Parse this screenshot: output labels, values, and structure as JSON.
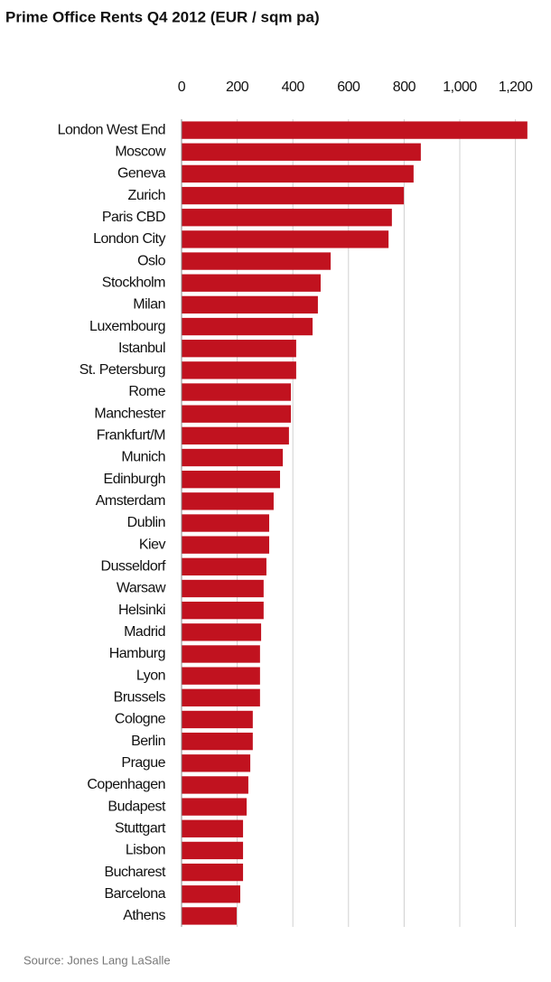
{
  "chart_data": {
    "type": "hbar",
    "title": "Prime Office Rents Q4 2012 (EUR / sqm pa)",
    "source": "Source: Jones Lang LaSalle",
    "categories": [
      "London West End",
      "Moscow",
      "Geneva",
      "Zurich",
      "Paris CBD",
      "London City",
      "Oslo",
      "Stockholm",
      "Milan",
      "Luxembourg",
      "Istanbul",
      "St. Petersburg",
      "Rome",
      "Manchester",
      "Frankfurt/M",
      "Munich",
      "Edinburgh",
      "Amsterdam",
      "Dublin",
      "Kiev",
      "Dusseldorf",
      "Warsaw",
      "Helsinki",
      "Madrid",
      "Hamburg",
      "Lyon",
      "Brussels",
      "Cologne",
      "Berlin",
      "Prague",
      "Copenhagen",
      "Budapest",
      "Stuttgart",
      "Lisbon",
      "Bucharest",
      "Barcelona",
      "Athens"
    ],
    "values": [
      1243,
      860,
      834,
      799,
      756,
      744,
      536,
      500,
      490,
      471,
      412,
      412,
      393,
      393,
      386,
      364,
      354,
      331,
      315,
      315,
      305,
      295,
      295,
      286,
      282,
      282,
      282,
      256,
      256,
      247,
      240,
      234,
      221,
      221,
      221,
      211,
      198
    ],
    "color": "#c1121f",
    "xlim": [
      0,
      1250
    ],
    "xticks": [
      0,
      200,
      400,
      600,
      800,
      {
        "value": 1000,
        "label": "1,000"
      },
      {
        "value": 1200,
        "label": "1,200"
      }
    ],
    "grid": true
  }
}
